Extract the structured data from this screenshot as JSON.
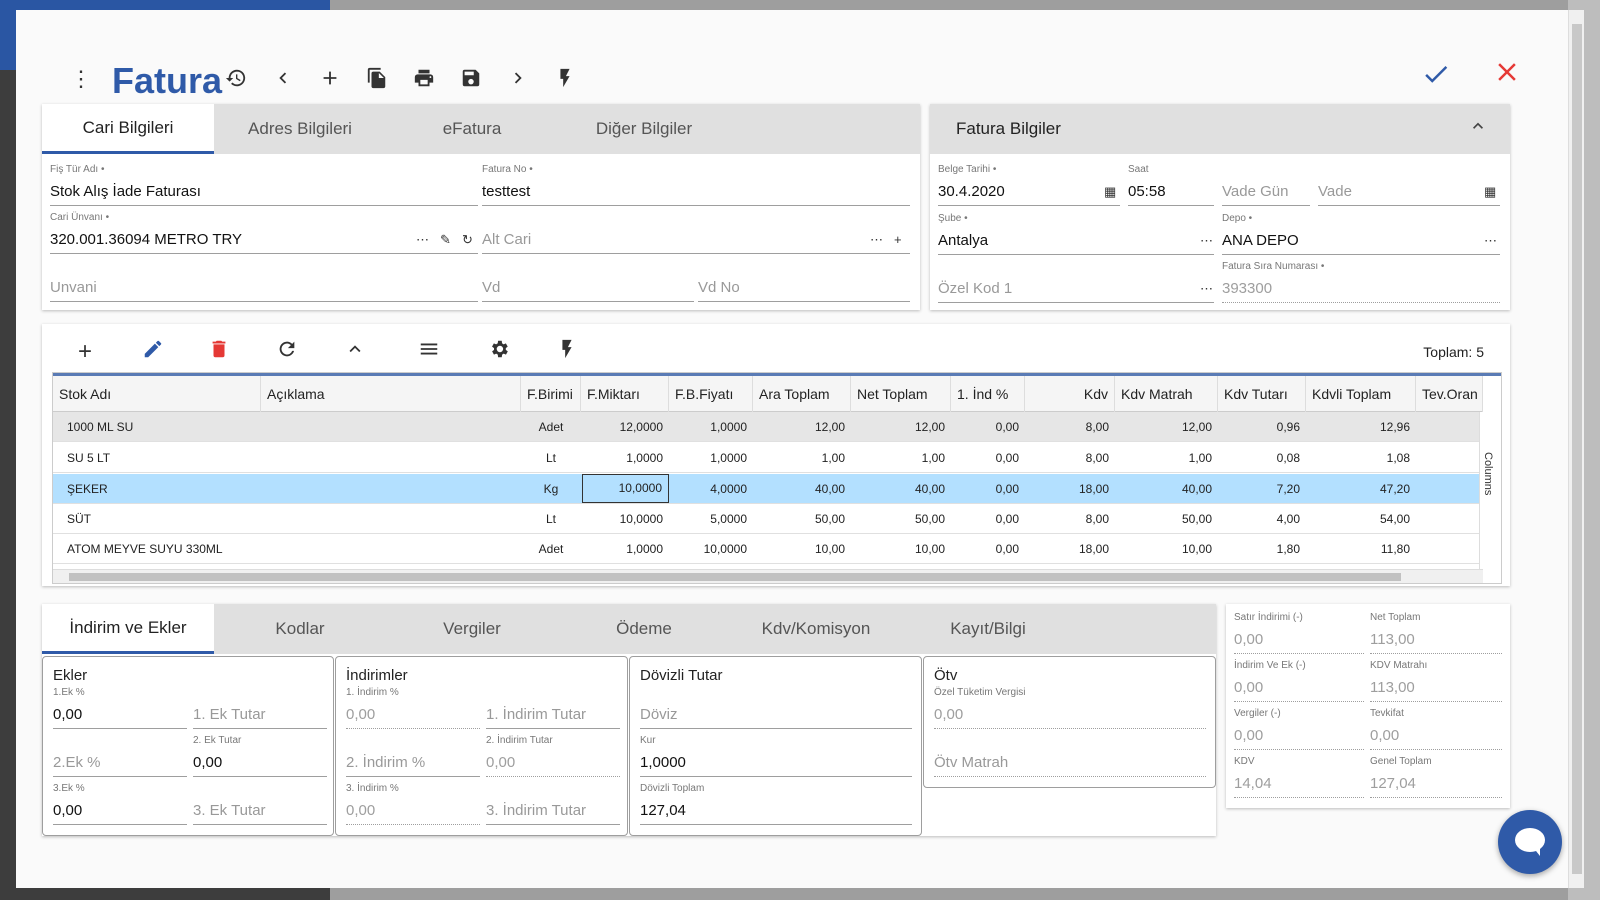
{
  "header": {
    "title": "Fatura",
    "toolbar_icons": [
      "history-icon",
      "chevron-left-icon",
      "add-icon",
      "copy-icon",
      "print-icon",
      "save-icon",
      "chevron-right-icon",
      "flash-icon"
    ],
    "confirm_icon": "check-icon",
    "cancel_icon": "close-icon"
  },
  "cari_tabs": [
    "Cari Bilgileri",
    "Adres Bilgileri",
    "eFatura",
    "Diğer Bilgiler"
  ],
  "cari": {
    "fis_tur_label": "Fiş Tür Adı •",
    "fis_tur_value": "Stok Alış İade Faturası",
    "fatura_no_label": "Fatura No •",
    "fatura_no_value": "testtest",
    "cari_unvani_label": "Cari Ünvanı •",
    "cari_unvani_value": "320.001.36094 METRO   TRY",
    "alt_cari_ph": "Alt Cari",
    "unvani_ph": "Unvani",
    "vd_ph": "Vd",
    "vd_no_ph": "Vd No"
  },
  "fatura_bilgiler": {
    "title": "Fatura Bilgiler",
    "belge_tarihi_label": "Belge Tarihi •",
    "belge_tarihi_value": "30.4.2020",
    "saat_label": "Saat",
    "saat_value": "05:58",
    "vade_gun_ph": "Vade Gün",
    "vade_ph": "Vade",
    "sube_label": "Şube •",
    "sube_value": "Antalya",
    "depo_label": "Depo •",
    "depo_value": "ANA DEPO",
    "ozel_kod_ph": "Özel Kod 1",
    "sira_label": "Fatura Sıra Numarası •",
    "sira_value": "393300"
  },
  "grid": {
    "total_label": "Toplam: 5",
    "columns_label": "Columns",
    "columns": [
      "Stok Adı",
      "Açıklama",
      "F.Birimi",
      "F.Miktarı",
      "F.B.Fiyatı",
      "Ara Toplam",
      "Net Toplam",
      "1. İnd %",
      "Kdv",
      "Kdv Matrah",
      "Kdv Tutarı",
      "Kdvli Toplam",
      "Tev.Oran"
    ],
    "rows": [
      [
        "1000 ML SU",
        "",
        "Adet",
        "12,0000",
        "1,0000",
        "12,00",
        "12,00",
        "0,00",
        "8,00",
        "12,00",
        "0,96",
        "12,96"
      ],
      [
        "SU 5 LT",
        "",
        "Lt",
        "1,0000",
        "1,0000",
        "1,00",
        "1,00",
        "0,00",
        "8,00",
        "1,00",
        "0,08",
        "1,08"
      ],
      [
        "ŞEKER",
        "",
        "Kg",
        "10,0000",
        "4,0000",
        "40,00",
        "40,00",
        "0,00",
        "18,00",
        "40,00",
        "7,20",
        "47,20"
      ],
      [
        "SÜT",
        "",
        "Lt",
        "10,0000",
        "5,0000",
        "50,00",
        "50,00",
        "0,00",
        "8,00",
        "50,00",
        "4,00",
        "54,00"
      ],
      [
        "ATOM MEYVE SUYU 330ML",
        "",
        "Adet",
        "1,0000",
        "10,0000",
        "10,00",
        "10,00",
        "0,00",
        "18,00",
        "10,00",
        "1,80",
        "11,80"
      ]
    ]
  },
  "bottom_tabs": [
    "İndirim ve Ekler",
    "Kodlar",
    "Vergiler",
    "Ödeme",
    "Kdv/Komisyon",
    "Kayıt/Bilgi"
  ],
  "ekler": {
    "title": "Ekler",
    "ek1_pct_label": "1.Ek %",
    "ek1_pct_value": "0,00",
    "ek1_tutar_ph": "1. Ek Tutar",
    "ek2_pct_ph": "2.Ek %",
    "ek2_tutar_label": "2. Ek Tutar",
    "ek2_tutar_value": "0,00",
    "ek3_pct_label": "3.Ek %",
    "ek3_pct_value": "0,00",
    "ek3_tutar_ph": "3. Ek Tutar"
  },
  "indirimler": {
    "title": "İndirimler",
    "ind1_pct_label": "1. İndirim %",
    "ind1_pct_value": "0,00",
    "ind1_tutar_ph": "1. İndirim Tutar",
    "ind2_pct_ph": "2. İndirim %",
    "ind2_tutar_label": "2. İndirim Tutar",
    "ind2_tutar_value": "0,00",
    "ind3_pct_label": "3. İndirim %",
    "ind3_pct_value": "0,00",
    "ind3_tutar_ph": "3. İndirim Tutar"
  },
  "dovizli": {
    "title": "Dövizli Tutar",
    "doviz_ph": "Döviz",
    "kur_label": "Kur",
    "kur_value": "1,0000",
    "toplam_label": "Dövizli Toplam",
    "toplam_value": "127,04"
  },
  "otv": {
    "title": "Ötv",
    "vergi_label": "Özel Tüketim Vergisi",
    "vergi_value": "0,00",
    "matrah_ph": "Ötv Matrah"
  },
  "summary": {
    "satir_ind_label": "Satır İndirimi (-)",
    "satir_ind_value": "0,00",
    "net_toplam_label": "Net Toplam",
    "net_toplam_value": "113,00",
    "ind_ek_label": "İndirim Ve Ek (-)",
    "ind_ek_value": "0,00",
    "kdv_matrahi_label": "KDV Matrahı",
    "kdv_matrahi_value": "113,00",
    "vergiler_label": "Vergiler (-)",
    "vergiler_value": "0,00",
    "tevkifat_label": "Tevkifat",
    "tevkifat_value": "0,00",
    "kdv_label": "KDV",
    "kdv_value": "14,04",
    "genel_toplam_label": "Genel Toplam",
    "genel_toplam_value": "127,04"
  },
  "colors": {
    "accent": "#2f5aa8",
    "danger": "#e53935",
    "selected_row": "#b3e0ff"
  }
}
